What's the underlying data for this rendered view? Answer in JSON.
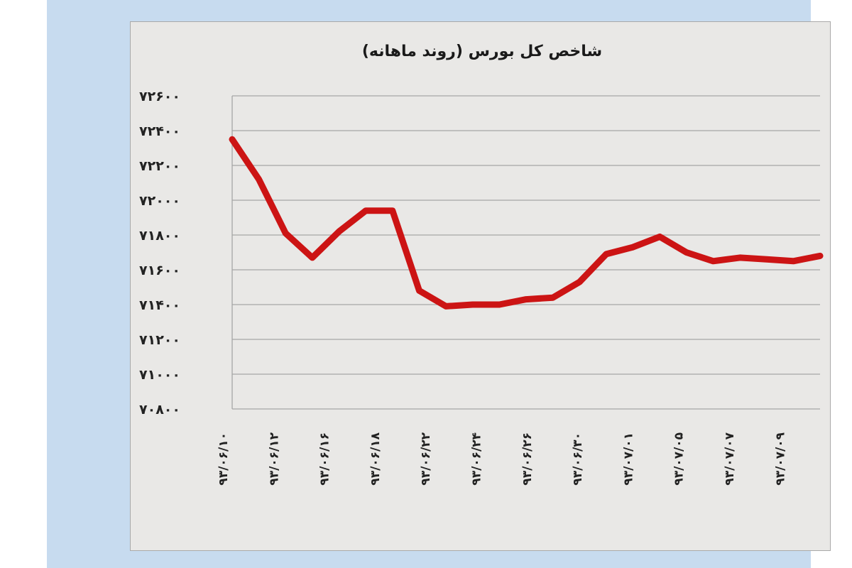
{
  "chart_data": {
    "type": "line",
    "title": "شاخص کل بورس (روند ماهانه)",
    "y_tick_labels": [
      "۷۲۶۰۰",
      "۷۲۴۰۰",
      "۷۲۲۰۰",
      "۷۲۰۰۰",
      "۷۱۸۰۰",
      "۷۱۶۰۰",
      "۷۱۴۰۰",
      "۷۱۲۰۰",
      "۷۱۰۰۰",
      "۷۰۸۰۰"
    ],
    "x_tick_labels": [
      "۹۳/۰۶/۱۰",
      "۹۳/۰۶/۱۲",
      "۹۳/۰۶/۱۶",
      "۹۳/۰۶/۱۸",
      "۹۳/۰۶/۲۲",
      "۹۳/۰۶/۲۴",
      "۹۳/۰۶/۲۶",
      "۹۳/۰۶/۳۰",
      "۹۳/۰۷/۰۱",
      "۹۳/۰۷/۰۵",
      "۹۳/۰۷/۰۷",
      "۹۳/۰۷/۰۹"
    ],
    "ylim": [
      70800,
      72600
    ],
    "grid": true,
    "line_color": "#cc1414",
    "series": [
      {
        "values": [
          72350,
          72120,
          71810,
          71670,
          71820,
          71940,
          71940,
          71480,
          71390,
          71400,
          71400,
          71430,
          71440,
          71530,
          71690,
          71730,
          71790,
          71700,
          71650,
          71670,
          71660,
          71650,
          71680
        ]
      }
    ]
  }
}
